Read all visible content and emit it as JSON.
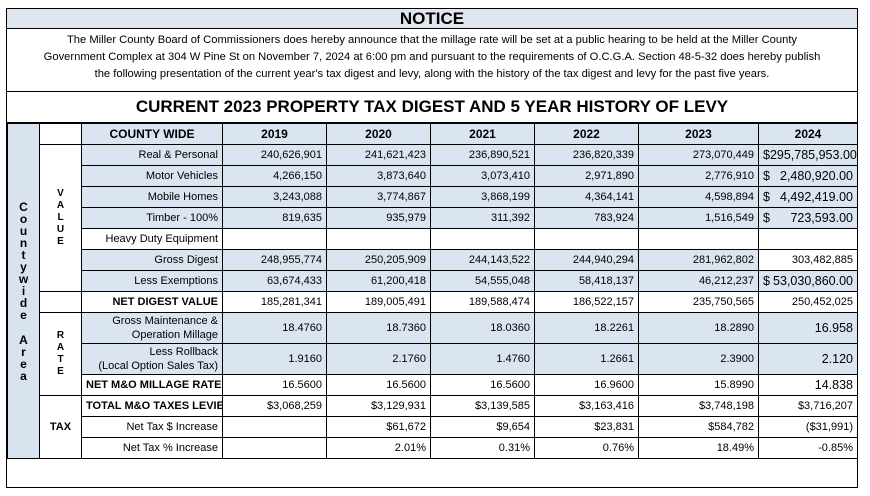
{
  "notice": {
    "title": "NOTICE",
    "line1": "The Miller County Board of Commissioners does hereby announce that the millage rate will be set at a public hearing to be  held at the Miller County",
    "line2": "Government Complex at 304 W Pine St on November 7, 2024 at 6:00 pm  and pursuant to  the requirements of O.C.G.A. Section 48-5-32 does hereby publish",
    "line3": "the following presentation of the current year's tax digest  and levy, along with the history of the tax digest and levy for the past five years."
  },
  "digest_title": "CURRENT 2023 PROPERTY TAX DIGEST AND 5 YEAR HISTORY OF LEVY",
  "side_label": [
    "C",
    "o",
    "u",
    "n",
    "t",
    "y",
    "w",
    "i",
    "d",
    "e",
    "",
    "A",
    "r",
    "e",
    "a"
  ],
  "groups": {
    "value": [
      "V",
      "A",
      "L",
      "U",
      "E"
    ],
    "rate": [
      "R",
      "A",
      "T",
      "E"
    ],
    "tax": "TAX"
  },
  "header": {
    "label": "COUNTY WIDE",
    "years": [
      "2019",
      "2020",
      "2021",
      "2022",
      "2023",
      "2024"
    ]
  },
  "rows": {
    "real_personal": {
      "label": "Real & Personal",
      "values": [
        "240,626,901",
        "241,621,423",
        "236,890,521",
        "236,820,339",
        "273,070,449"
      ],
      "last": "295,785,953.00"
    },
    "motor_vehicles": {
      "label": "Motor Vehicles",
      "values": [
        "4,266,150",
        "3,873,640",
        "3,073,410",
        "2,971,890",
        "2,776,910"
      ],
      "last": "2,480,920.00"
    },
    "mobile_homes": {
      "label": "Mobile Homes",
      "values": [
        "3,243,088",
        "3,774,867",
        "3,868,199",
        "4,364,141",
        "4,598,894"
      ],
      "last": "4,492,419.00"
    },
    "timber": {
      "label": "Timber - 100%",
      "values": [
        "819,635",
        "935,979",
        "311,392",
        "783,924",
        "1,516,549"
      ],
      "last": "723,593.00"
    },
    "heavy_duty": {
      "label": "Heavy Duty Equipment"
    },
    "gross_digest": {
      "label": "Gross Digest",
      "values": [
        "248,955,774",
        "250,205,909",
        "244,143,522",
        "244,940,294",
        "281,962,802"
      ],
      "last": "303,482,885"
    },
    "less_exemptions": {
      "label": "Less Exemptions",
      "values": [
        "63,674,433",
        "61,200,418",
        "54,555,048",
        "58,418,137",
        "46,212,237"
      ],
      "last": "53,030,860.00"
    },
    "net_digest": {
      "label": "NET DIGEST VALUE",
      "values": [
        "185,281,341",
        "189,005,491",
        "189,588,474",
        "186,522,157",
        "235,750,565"
      ],
      "last": "250,452,025"
    },
    "gross_mo": {
      "label1": "Gross Maintenance &",
      "label2": "Operation Millage",
      "values": [
        "18.4760",
        "18.7360",
        "18.0360",
        "18.2261",
        "18.2890"
      ],
      "last": "16.958"
    },
    "less_rollback": {
      "label1": "Less Rollback",
      "label2": "(Local Option Sales Tax)",
      "values": [
        "1.9160",
        "2.1760",
        "1.4760",
        "1.2661",
        "2.3900"
      ],
      "last": "2.120"
    },
    "net_mo": {
      "label": "NET M&O MILLAGE RATE",
      "values": [
        "16.5600",
        "16.5600",
        "16.5600",
        "16.9600",
        "15.8990"
      ],
      "last": "14.838"
    },
    "total_mo": {
      "label": "TOTAL M&O TAXES LEVIED",
      "values": [
        "$3,068,259",
        "$3,129,931",
        "$3,139,585",
        "$3,163,416",
        "$3,748,198"
      ],
      "last": "$3,716,207"
    },
    "net_tax_dollar": {
      "label": "Net Tax $ Increase",
      "values": [
        "",
        "$61,672",
        "$9,654",
        "$23,831",
        "$584,782"
      ],
      "last": "($31,991)"
    },
    "net_tax_pct": {
      "label": "Net Tax % Increase",
      "values": [
        "",
        "2.01%",
        "0.31%",
        "0.76%",
        "18.49%"
      ],
      "last": "-0.85%"
    }
  },
  "dollar_sign": "$"
}
